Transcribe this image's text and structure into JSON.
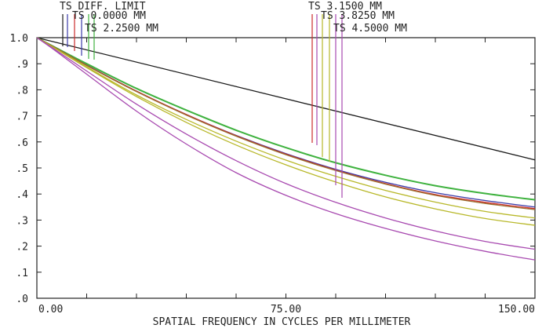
{
  "chart_data": {
    "type": "line",
    "title": "",
    "xlabel": "SPATIAL FREQUENCY IN CYCLES PER MILLIMETER",
    "ylabel": "",
    "xlim": [
      0,
      150
    ],
    "ylim": [
      0,
      1.0
    ],
    "x_tick_labels": [
      {
        "value": 0,
        "label": "0.00"
      },
      {
        "value": 75,
        "label": "75.00"
      },
      {
        "value": 150,
        "label": "150.00"
      }
    ],
    "y_tick_labels": [
      {
        "value": 1.0,
        "label": "1.0"
      },
      {
        "value": 0.9,
        "label": ".9"
      },
      {
        "value": 0.8,
        "label": ".8"
      },
      {
        "value": 0.7,
        "label": ".7"
      },
      {
        "value": 0.6,
        "label": ".6"
      },
      {
        "value": 0.5,
        "label": ".5"
      },
      {
        "value": 0.4,
        "label": ".4"
      },
      {
        "value": 0.3,
        "label": ".3"
      },
      {
        "value": 0.2,
        "label": ".2"
      },
      {
        "value": 0.1,
        "label": ".1"
      },
      {
        "value": 0.0,
        "label": ".0"
      }
    ],
    "x": [
      0,
      5,
      15,
      30,
      45,
      60,
      75,
      90,
      105,
      120,
      135,
      150
    ],
    "legend": [
      {
        "label": "TS DIFF. LIMIT",
        "color": "#1a1a1a",
        "x_marker": 7
      },
      {
        "label": "TS 0.0000 MM",
        "color": "#3a3aa8",
        "x_marker": 9
      },
      {
        "label": "TS 2.2500 MM",
        "color": "#3fb23f",
        "x_marker": 13
      },
      {
        "label": "TS 3.1500 MM",
        "color": "#cc2b2b",
        "x_marker": 83
      },
      {
        "label": "TS 3.8250 MM",
        "color": "#b8b82a",
        "x_marker": 88
      },
      {
        "label": "TS 4.5000 MM",
        "color": "#a84ab0",
        "x_marker": 92
      }
    ],
    "legend_colors": [
      "#1a1a1a",
      "#3a3aa8",
      "#3fb23f",
      "#cc2b2b",
      "#b8b82a",
      "#a84ab0",
      "#9a6f2e"
    ],
    "series": [
      {
        "color": "#1a1a1a",
        "values": [
          1.0,
          0.984,
          0.952,
          0.905,
          0.858,
          0.811,
          0.764,
          0.718,
          0.671,
          0.624,
          0.577,
          0.531
        ]
      },
      {
        "color": "#3a3aa8",
        "values": [
          1.0,
          0.965,
          0.895,
          0.795,
          0.705,
          0.625,
          0.555,
          0.495,
          0.445,
          0.405,
          0.375,
          0.35
        ]
      },
      {
        "color": "#3fb23f",
        "values": [
          1.0,
          0.966,
          0.9,
          0.805,
          0.722,
          0.645,
          0.578,
          0.52,
          0.472,
          0.432,
          0.402,
          0.378
        ]
      },
      {
        "color": "#cc2b2b",
        "values": [
          1.0,
          0.965,
          0.894,
          0.795,
          0.705,
          0.624,
          0.553,
          0.492,
          0.44,
          0.398,
          0.368,
          0.344
        ]
      },
      {
        "color": "#9a6f2e",
        "values": [
          1.0,
          0.964,
          0.893,
          0.793,
          0.703,
          0.622,
          0.551,
          0.49,
          0.438,
          0.395,
          0.364,
          0.34
        ]
      },
      {
        "color": "#b8b82a",
        "values": [
          1.0,
          0.962,
          0.885,
          0.774,
          0.675,
          0.588,
          0.512,
          0.446,
          0.389,
          0.343,
          0.306,
          0.28
        ]
      },
      {
        "color": "#b8b82a",
        "values": [
          1.0,
          0.963,
          0.888,
          0.78,
          0.686,
          0.603,
          0.53,
          0.468,
          0.414,
          0.369,
          0.333,
          0.308
        ]
      },
      {
        "color": "#a84ab0",
        "values": [
          1.0,
          0.955,
          0.86,
          0.718,
          0.592,
          0.482,
          0.395,
          0.325,
          0.268,
          0.22,
          0.18,
          0.147
        ]
      },
      {
        "color": "#a84ab0",
        "values": [
          1.0,
          0.958,
          0.872,
          0.745,
          0.63,
          0.528,
          0.44,
          0.368,
          0.308,
          0.258,
          0.218,
          0.188
        ]
      }
    ],
    "grid": false,
    "legend_placement": "top"
  }
}
